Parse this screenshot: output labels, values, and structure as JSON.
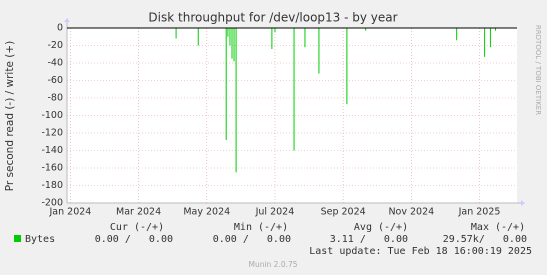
{
  "chart_data": {
    "type": "line",
    "title": "Disk throughput for /dev/loop13 - by year",
    "y_label": "Pr second read (-) / write (+)",
    "side_label": "RRDTOOL / TOBI OETIKER",
    "x": [
      3.1,
      3.75,
      4.57,
      4.62,
      4.68,
      4.74,
      4.8,
      4.86,
      5.91,
      6.0,
      6.56,
      6.88,
      7.29,
      8.11,
      8.66,
      11.33,
      12.15,
      12.32,
      12.47
    ],
    "series": [
      {
        "name": "Bytes",
        "color": "#00cc00",
        "values": [
          -12,
          -20,
          -128,
          -10,
          -20,
          -35,
          -38,
          -165,
          -24,
          -5,
          -140,
          -22,
          -52,
          -87,
          -3,
          -14,
          -33,
          -22,
          -3
        ]
      }
    ],
    "xlim": [
      -0.1,
      13.1
    ],
    "xticks": [
      {
        "value": 0,
        "label": "Jan 2024"
      },
      {
        "value": 2,
        "label": "Mar 2024"
      },
      {
        "value": 4,
        "label": "May 2024"
      },
      {
        "value": 6,
        "label": "Jul 2024"
      },
      {
        "value": 8,
        "label": "Sep 2024"
      },
      {
        "value": 10,
        "label": "Nov 2024"
      },
      {
        "value": 12,
        "label": "Jan 2025"
      }
    ],
    "ylim": [
      -200,
      0
    ],
    "yticks": [
      0,
      -20,
      -40,
      -60,
      -80,
      -100,
      -120,
      -140,
      -160,
      -180,
      -200
    ],
    "grid": true,
    "legend_table": {
      "headers": [
        "Cur (-/+)",
        "Min (-/+)",
        "Avg (-/+)",
        "Max (-/+)"
      ],
      "values": [
        "0.00 /   0.00",
        "0.00 /   0.00",
        "3.11 /   0.00",
        "29.57k/   0.00"
      ]
    },
    "last_update": "Last update: Tue Feb 18 16:00:19 2025",
    "footer": "Munin 2.0.75"
  }
}
